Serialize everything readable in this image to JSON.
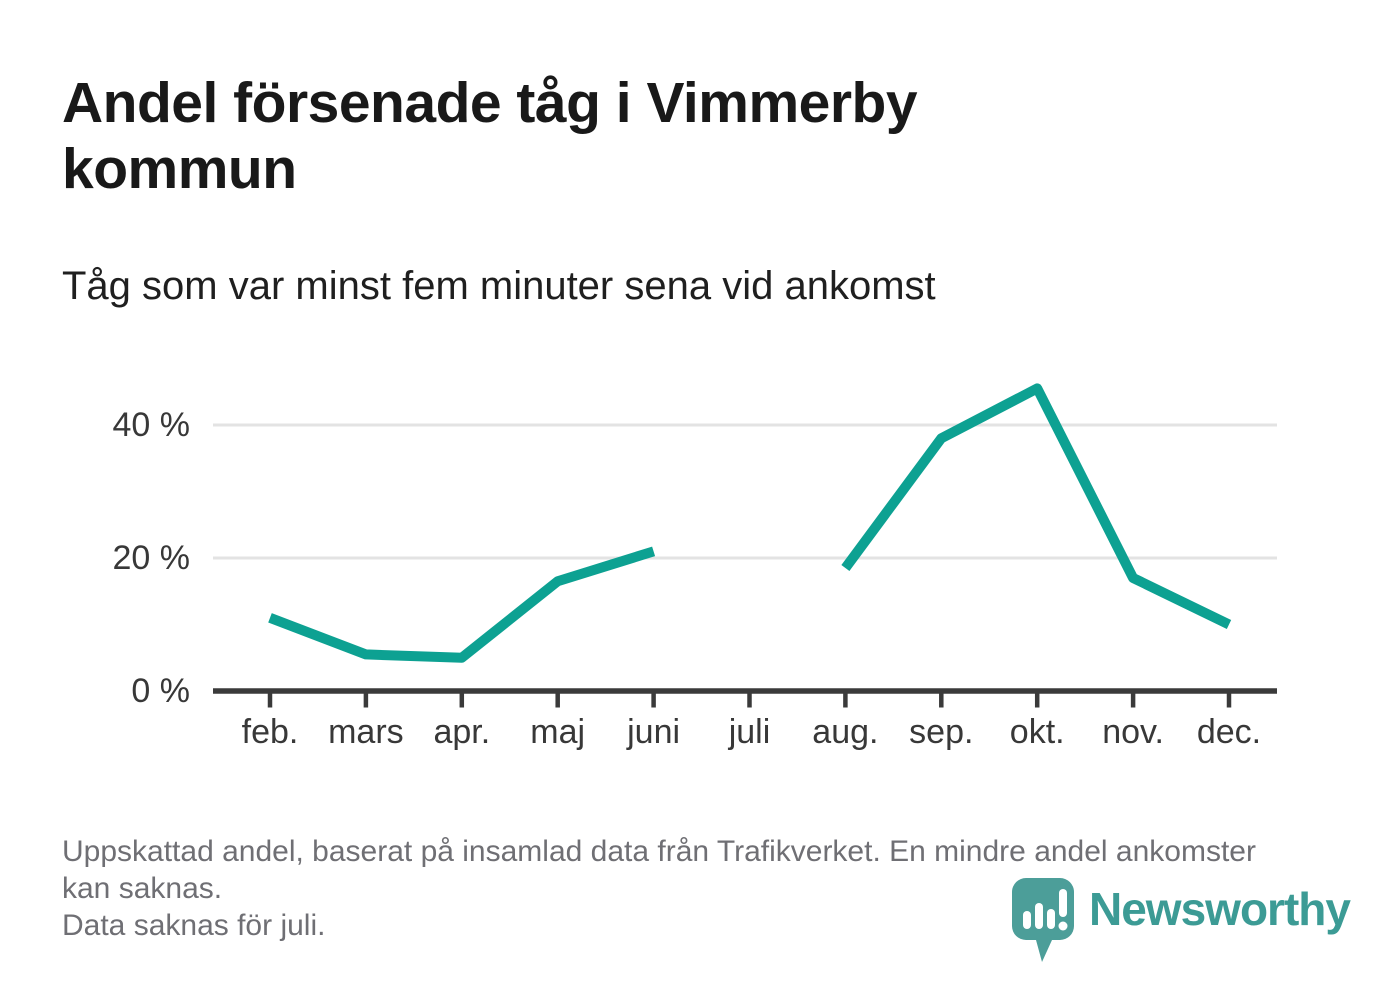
{
  "header": {
    "title": "Andel försenade tåg i Vimmerby kommun",
    "subtitle": "Tåg som var minst fem minuter sena vid ankomst"
  },
  "chart_data": {
    "type": "line",
    "title": "Andel försenade tåg i Vimmerby kommun",
    "subtitle": "Tåg som var minst fem minuter sena vid ankomst",
    "categories": [
      "feb.",
      "mars",
      "apr.",
      "maj",
      "juni",
      "juli",
      "aug.",
      "sep.",
      "okt.",
      "nov.",
      "dec."
    ],
    "values": [
      11,
      5.5,
      5,
      16.5,
      21,
      null,
      18.5,
      38,
      45.5,
      17,
      10
    ],
    "unit": "%",
    "missing_months": [
      "juli"
    ],
    "ylim": [
      0,
      48
    ],
    "yticks": [
      0,
      20,
      40
    ],
    "ytick_labels": [
      "0 %",
      "20 %",
      "40 %"
    ],
    "xlabel": "",
    "ylabel": "",
    "grid": "horizontal",
    "legend": "none"
  },
  "footer": {
    "note": "Uppskattad andel, baserat på insamlad data från Trafikverket. En mindre andel ankomster kan saknas.",
    "missing_note": "Data saknas för juli.",
    "logo_text": "Newsworthy"
  },
  "colors": {
    "line": "#0da192",
    "axis": "#3a3a3a",
    "grid": "#e3e3e3",
    "tick_text": "#383838",
    "title_text": "#191919",
    "muted_text": "#6f6f74",
    "logo_icon": "#4c9e99",
    "logo_text": "#3c9b95"
  }
}
